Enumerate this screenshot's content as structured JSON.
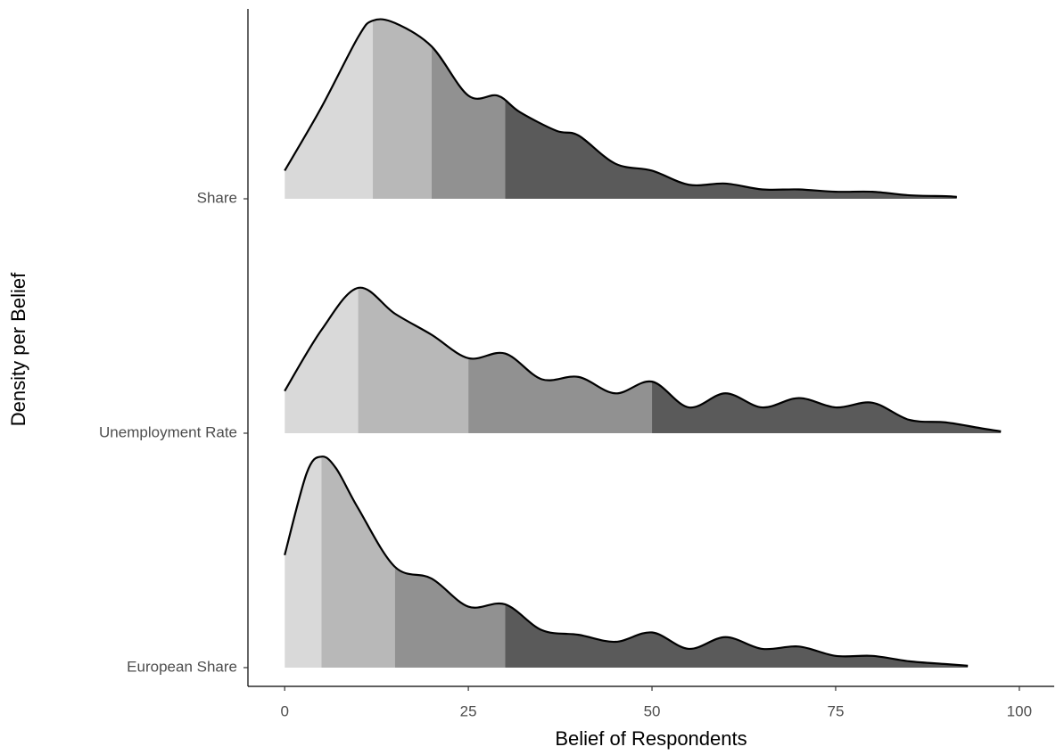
{
  "chart_data": {
    "type": "ridgeline",
    "x_label": "Belief of Respondents",
    "y_label": "Density per Belief",
    "xlim": [
      -5,
      104.75
    ],
    "xticks": [
      0,
      25,
      50,
      75,
      100
    ],
    "ylim": [
      0.92,
      3.81
    ],
    "band_colors": [
      "#d9d9d9",
      "#b8b8b8",
      "#919191",
      "#5a5a5a"
    ],
    "line_color": "#000000",
    "series": [
      {
        "name": "European Share",
        "x": [
          0,
          3,
          5,
          7,
          10,
          15,
          20,
          25,
          30,
          35,
          40,
          45,
          50,
          55,
          60,
          65,
          70,
          75,
          80,
          85,
          90,
          93
        ],
        "values": [
          0.48,
          0.83,
          0.9,
          0.85,
          0.68,
          0.43,
          0.38,
          0.26,
          0.27,
          0.16,
          0.14,
          0.11,
          0.15,
          0.08,
          0.13,
          0.08,
          0.09,
          0.05,
          0.05,
          0.027,
          0.015,
          0.008
        ],
        "quantiles": [
          5,
          15,
          30
        ]
      },
      {
        "name": "Unemployment Rate",
        "x": [
          0,
          5,
          10,
          15,
          20,
          25,
          30,
          35,
          40,
          45,
          50,
          55,
          60,
          65,
          70,
          75,
          80,
          85,
          90,
          95,
          97.5
        ],
        "values": [
          0.18,
          0.44,
          0.62,
          0.51,
          0.42,
          0.32,
          0.34,
          0.23,
          0.24,
          0.17,
          0.22,
          0.11,
          0.17,
          0.11,
          0.15,
          0.11,
          0.13,
          0.057,
          0.046,
          0.02,
          0.008
        ],
        "quantiles": [
          10,
          25,
          50
        ]
      },
      {
        "name": "Share",
        "x": [
          0,
          5,
          10,
          12,
          15,
          20,
          25,
          29,
          32,
          37,
          40,
          45,
          50,
          55,
          60,
          65,
          70,
          75,
          80,
          85,
          90,
          91.5
        ],
        "values": [
          0.12,
          0.39,
          0.69,
          0.76,
          0.75,
          0.65,
          0.44,
          0.44,
          0.37,
          0.29,
          0.27,
          0.15,
          0.12,
          0.06,
          0.065,
          0.04,
          0.04,
          0.03,
          0.03,
          0.015,
          0.011,
          0.008
        ],
        "quantiles": [
          12,
          20,
          30
        ]
      }
    ]
  }
}
